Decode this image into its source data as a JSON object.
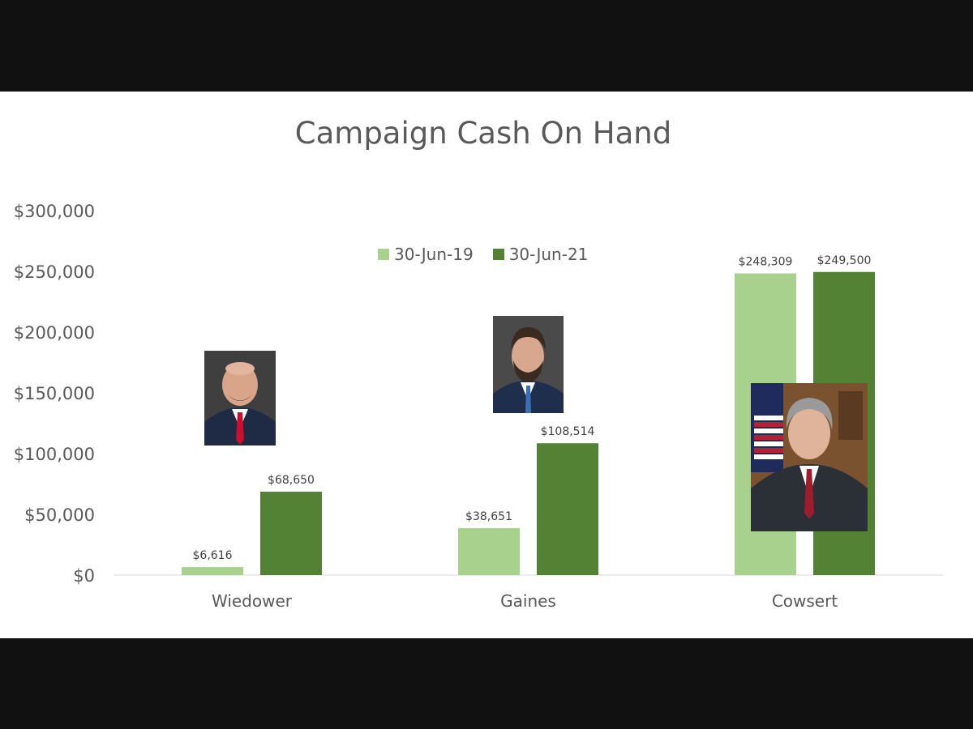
{
  "chart_data": {
    "type": "bar",
    "title": "Campaign Cash On Hand",
    "categories": [
      "Wiedower",
      "Gaines",
      "Cowsert"
    ],
    "series": [
      {
        "name": "30-Jun-19",
        "values": [
          6616,
          38651,
          248309
        ],
        "labels": [
          "$6,616",
          "$38,651",
          "$248,309"
        ],
        "color": "#a9d18e"
      },
      {
        "name": "30-Jun-21",
        "values": [
          68650,
          108514,
          249500
        ],
        "labels": [
          "$68,650",
          "$108,514",
          "$249,500"
        ],
        "color": "#548235"
      }
    ],
    "ylim": [
      0,
      300000
    ],
    "yticks": [
      0,
      50000,
      100000,
      150000,
      200000,
      250000,
      300000
    ],
    "ytick_labels": [
      "$0",
      "$50,000",
      "$100,000",
      "$150,000",
      "$200,000",
      "$250,000",
      "$300,000"
    ],
    "xlabel": "",
    "ylabel": "",
    "grid": false,
    "legend": "top-center"
  },
  "photos": [
    {
      "subject": "Wiedower",
      "background": "#3f3f3f",
      "tie": "#c8102e"
    },
    {
      "subject": "Gaines",
      "background": "#4a4a4a",
      "tie": "#3a6fb5"
    },
    {
      "subject": "Cowsert",
      "background": "#7a5230",
      "tie": "#a01c2c"
    }
  ]
}
